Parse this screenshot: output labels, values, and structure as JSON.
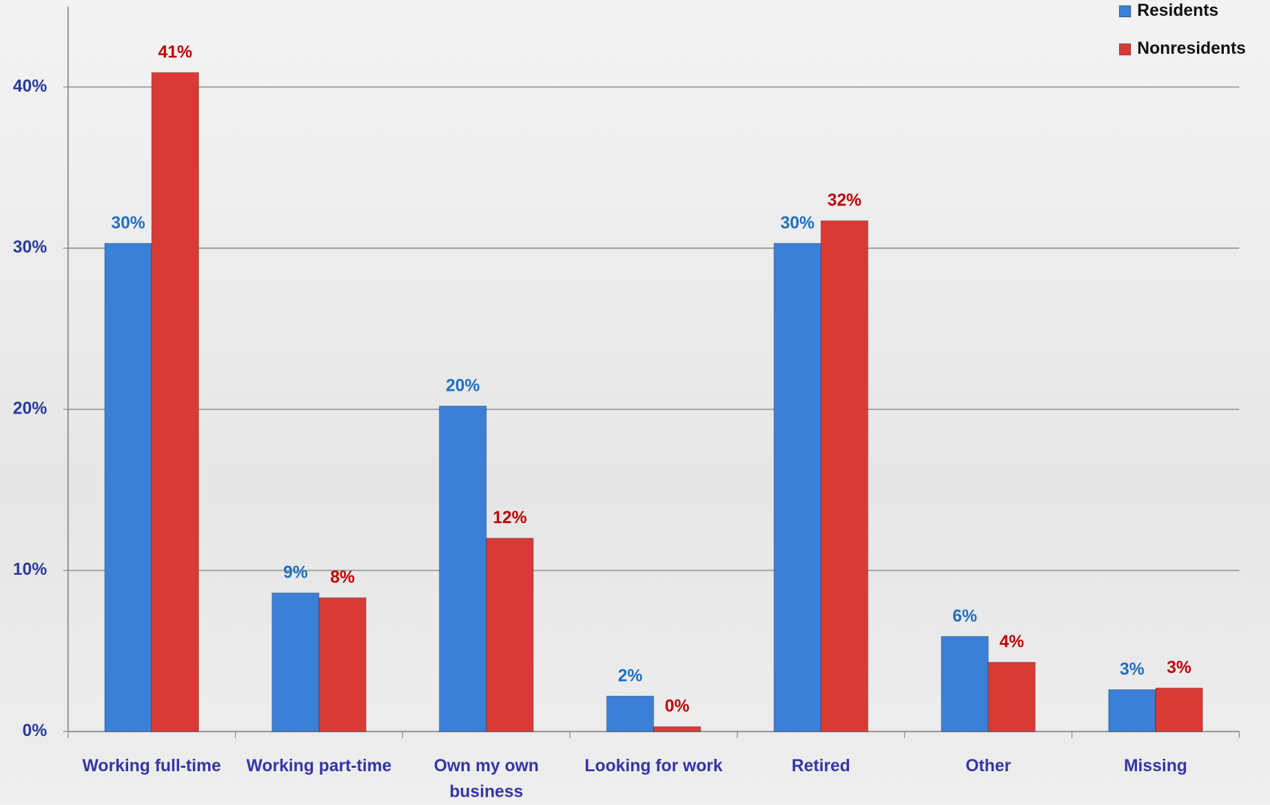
{
  "chart_data": {
    "type": "bar",
    "categories": [
      "Working full-time",
      "Working part-time",
      "Own my own business",
      "Looking for work",
      "Retired",
      "Other",
      "Missing"
    ],
    "series": [
      {
        "name": "Residents",
        "color": "#3b80d6",
        "label_color": "#1f6fbf",
        "values": [
          30.3,
          8.6,
          20.2,
          2.2,
          30.3,
          5.9,
          2.6
        ],
        "value_labels": [
          "30%",
          "9%",
          "20%",
          "2%",
          "30%",
          "6%",
          "3%"
        ]
      },
      {
        "name": "Nonresidents",
        "color": "#d83b36",
        "label_color": "#c00000",
        "values": [
          40.9,
          8.3,
          12.0,
          0.3,
          31.7,
          4.3,
          2.7
        ],
        "value_labels": [
          "41%",
          "8%",
          "12%",
          "0%",
          "32%",
          "4%",
          "3%"
        ]
      }
    ],
    "ylim": [
      0,
      45
    ],
    "yticks": [
      {
        "value": 0,
        "label": "0%"
      },
      {
        "value": 10,
        "label": "10%"
      },
      {
        "value": 20,
        "label": "20%"
      },
      {
        "value": 30,
        "label": "30%"
      },
      {
        "value": 40,
        "label": "40%"
      }
    ],
    "grid": true,
    "legend": "top-right"
  }
}
